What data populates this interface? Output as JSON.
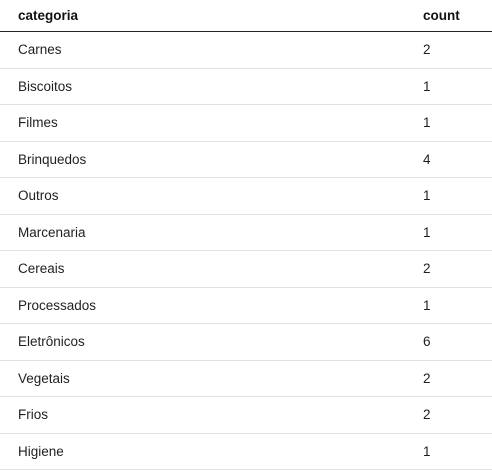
{
  "table": {
    "headers": [
      "categoria",
      "count"
    ],
    "rows": [
      {
        "categoria": "Carnes",
        "count": "2"
      },
      {
        "categoria": "Biscoitos",
        "count": "1"
      },
      {
        "categoria": "Filmes",
        "count": "1"
      },
      {
        "categoria": "Brinquedos",
        "count": "4"
      },
      {
        "categoria": "Outros",
        "count": "1"
      },
      {
        "categoria": "Marcenaria",
        "count": "1"
      },
      {
        "categoria": "Cereais",
        "count": "2"
      },
      {
        "categoria": "Processados",
        "count": "1"
      },
      {
        "categoria": "Eletrônicos",
        "count": "6"
      },
      {
        "categoria": "Vegetais",
        "count": "2"
      },
      {
        "categoria": "Frios",
        "count": "2"
      },
      {
        "categoria": "Higiene",
        "count": "1"
      }
    ]
  }
}
